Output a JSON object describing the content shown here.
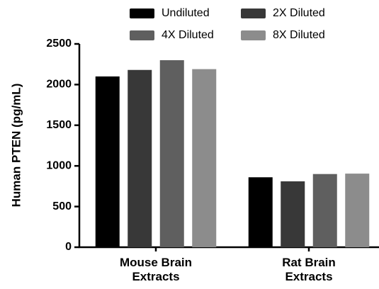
{
  "chart_data": {
    "type": "bar",
    "y_label": "Human PTEN (pg/mL)",
    "categories": [
      "Mouse Brain Extracts",
      "Rat Brain Extracts"
    ],
    "series": [
      {
        "name": "Undiluted",
        "color": "#000000",
        "values": [
          2100,
          860
        ]
      },
      {
        "name": "2X Diluted",
        "color": "#383838",
        "values": [
          2180,
          810
        ]
      },
      {
        "name": "4X Diluted",
        "color": "#5f5f5f",
        "values": [
          2300,
          900
        ]
      },
      {
        "name": "8X Diluted",
        "color": "#8c8c8c",
        "values": [
          2190,
          905
        ]
      }
    ],
    "ylim": [
      0,
      2500
    ],
    "yticks": [
      0,
      500,
      1000,
      1500,
      2000,
      2500
    ],
    "legend": "top"
  }
}
